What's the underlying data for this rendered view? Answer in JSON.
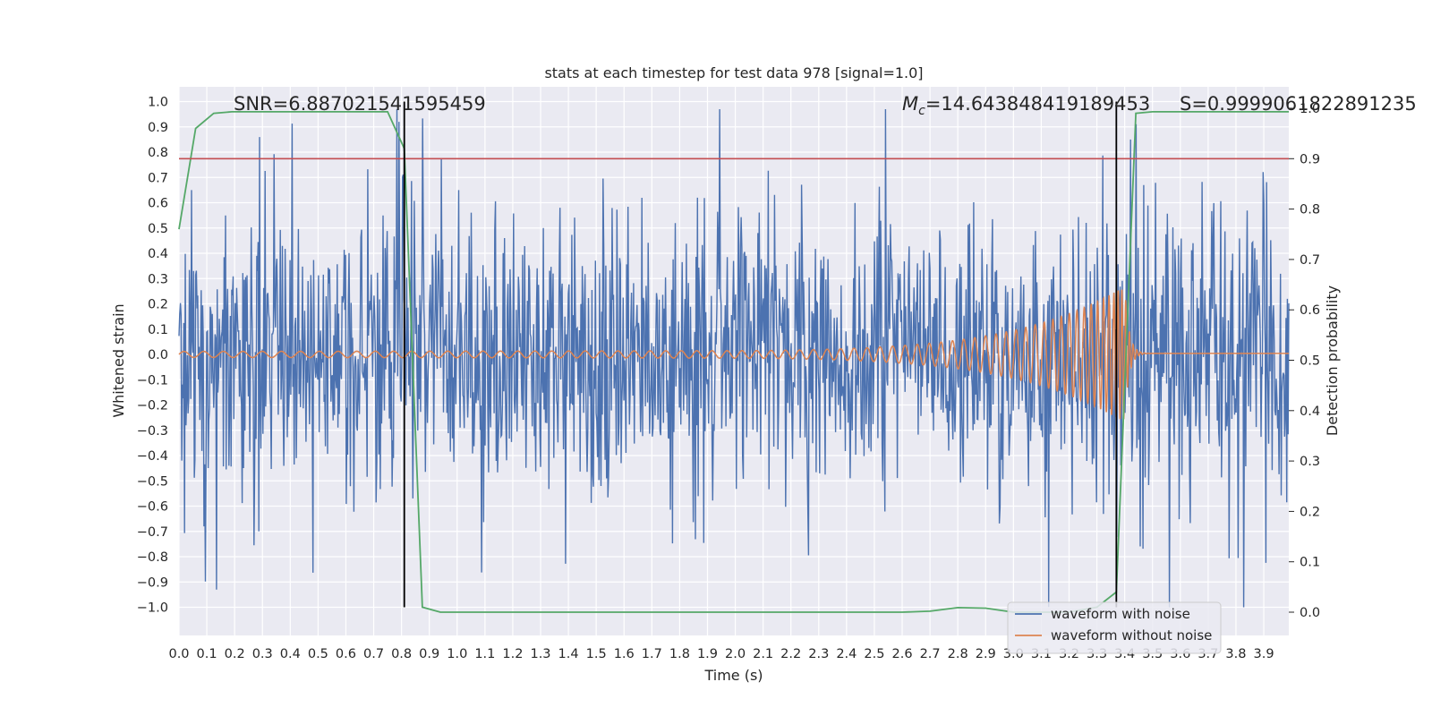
{
  "chart_data": {
    "type": "line",
    "title": "stats at each timestep for test data 978 [signal=1.0]",
    "xlabel": "Time (s)",
    "ylabel": "Whitened strain",
    "y2label": "Detection probability",
    "xlim": [
      0.0,
      3.99
    ],
    "ylim": [
      -1.1,
      1.1
    ],
    "y2lim": [
      -0.05,
      1.0
    ],
    "grid": true,
    "xticks": [
      "0.0",
      "0.1",
      "0.2",
      "0.3",
      "0.4",
      "0.5",
      "0.6",
      "0.7",
      "0.8",
      "0.9",
      "1.0",
      "1.1",
      "1.2",
      "1.3",
      "1.4",
      "1.5",
      "1.6",
      "1.7",
      "1.8",
      "1.9",
      "2.0",
      "2.1",
      "2.2",
      "2.3",
      "2.4",
      "2.5",
      "2.6",
      "2.7",
      "2.8",
      "2.9",
      "3.0",
      "3.1",
      "3.2",
      "3.3",
      "3.4",
      "3.5",
      "3.6",
      "3.7",
      "3.8",
      "3.9"
    ],
    "yticks": [
      "1.0",
      "0.9",
      "0.8",
      "0.7",
      "0.6",
      "0.5",
      "0.4",
      "0.3",
      "0.2",
      "0.1",
      "0.0",
      "−0.1",
      "−0.2",
      "−0.3",
      "−0.4",
      "−0.5",
      "−0.6",
      "−0.7",
      "−0.8",
      "−0.9",
      "−1.0"
    ],
    "y2ticks": [
      "1.0",
      "0.9",
      "0.8",
      "0.7",
      "0.6",
      "0.5",
      "0.4",
      "0.3",
      "0.2",
      "0.1",
      "0.0"
    ],
    "annotations": {
      "snr": "SNR=6.887021541595459",
      "mc_symbol": "M",
      "mc_subscript": "c",
      "mc_value": "=14.643848419189453",
      "s": "S=0.9999061822891235"
    },
    "legend": {
      "placement": "lower-right",
      "entries": [
        "waveform with noise",
        "waveform without noise"
      ]
    },
    "series": [
      {
        "name": "waveform with noise",
        "axis": "left",
        "color": "#4c72b0",
        "kind": "noise",
        "t_range": [
          0.0,
          3.99
        ],
        "amplitude_envelope": 0.55,
        "samples": 1600,
        "notable_peaks": [
          {
            "x": 0.09,
            "y": -0.68
          },
          {
            "x": 0.29,
            "y": 0.86
          },
          {
            "x": 0.79,
            "y": 0.92
          },
          {
            "x": 2.54,
            "y": 0.97
          },
          {
            "x": 3.56,
            "y": -1.0
          },
          {
            "x": 3.42,
            "y": 0.85
          }
        ]
      },
      {
        "name": "waveform without noise",
        "axis": "left",
        "color": "#dd8452",
        "kind": "chirp",
        "t_range": [
          0.0,
          3.99
        ],
        "start_amplitude": 0.012,
        "peak_amplitude": 0.27,
        "merger_time": 3.4,
        "start_freq_hz": 14,
        "merger_freq_hz": 75
      },
      {
        "name": "detection probability",
        "axis": "right",
        "color": "#55a868",
        "x": [
          0.0,
          0.06,
          0.125,
          0.19,
          0.75,
          0.81,
          0.875,
          0.94,
          1.0,
          2.6,
          2.7,
          2.8,
          2.9,
          3.0,
          3.1,
          3.2,
          3.3,
          3.37,
          3.44,
          3.5,
          3.99
        ],
        "y": [
          0.76,
          0.96,
          0.99,
          0.993,
          0.993,
          0.92,
          0.01,
          0.0,
          0.0,
          0.0,
          0.002,
          0.009,
          0.008,
          0.0,
          0.0,
          0.0,
          0.01,
          0.04,
          0.99,
          0.993,
          0.993
        ]
      }
    ],
    "reference_lines": {
      "threshold_right_axis": 0.9,
      "threshold_color": "#c44e52",
      "vertical_times": [
        0.81,
        3.37
      ],
      "vertical_color": "#000000",
      "vertical_y_range_left": [
        -1.0,
        1.0
      ]
    }
  }
}
